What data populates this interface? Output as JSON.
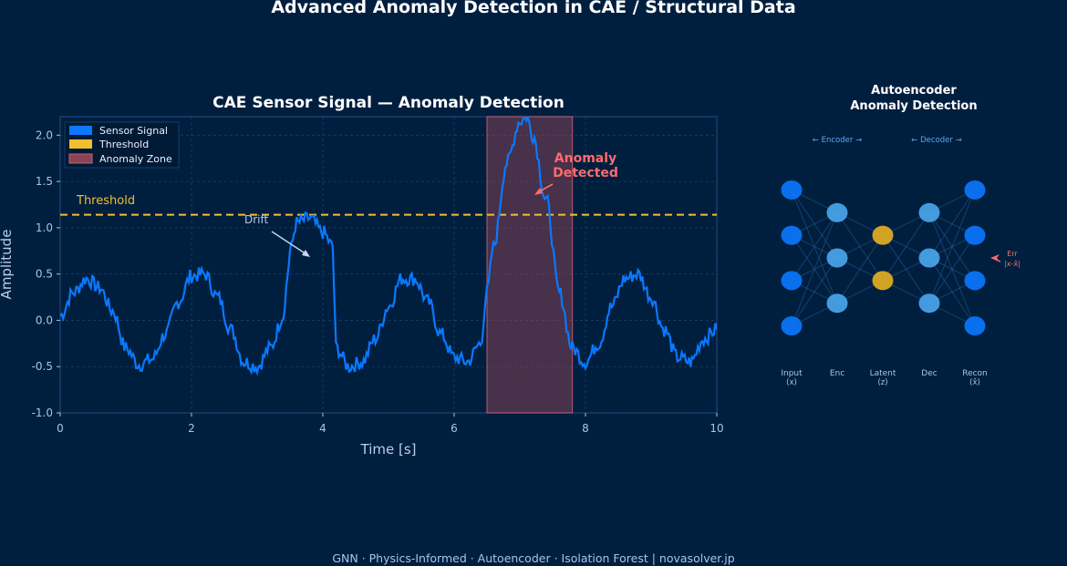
{
  "page": {
    "title": "Advanced Anomaly Detection in CAE / Structural Data",
    "footer": "GNN · Physics-Informed · Autoencoder · Isolation Forest  |  novasolver.jp"
  },
  "colors": {
    "background": "#001f3f",
    "signal": "#0a78ff",
    "threshold": "#f0c030",
    "anomaly_zone": "#a04858",
    "anomaly_text": "#ff6b6b",
    "node_outer": "#0a78ff",
    "node_hidden": "#4aa8f0",
    "node_latent": "#e8b020"
  },
  "chart_data": [
    {
      "type": "line",
      "title": "CAE Sensor Signal — Anomaly Detection",
      "xlabel": "Time  [s]",
      "ylabel": "Amplitude",
      "xlim": [
        0,
        10
      ],
      "ylim": [
        -1.0,
        2.2
      ],
      "xticks": [
        0,
        2,
        4,
        6,
        8,
        10
      ],
      "yticks": [
        -1.0,
        -0.5,
        0.0,
        0.5,
        1.0,
        1.5,
        2.0
      ],
      "grid": true,
      "legend_position": "top-left",
      "legend": [
        "Sensor Signal",
        "Threshold",
        "Anomaly Zone"
      ],
      "series": [
        {
          "name": "Sensor Signal",
          "x": [
            0,
            0.2,
            0.4,
            0.6,
            0.8,
            1.0,
            1.2,
            1.4,
            1.6,
            1.8,
            2.0,
            2.2,
            2.4,
            2.6,
            2.8,
            3.0,
            3.2,
            3.4,
            3.5,
            3.6,
            3.8,
            4.0,
            4.15,
            4.2,
            4.4,
            4.6,
            4.8,
            5.0,
            5.2,
            5.4,
            5.6,
            5.8,
            6.0,
            6.2,
            6.4,
            6.5,
            6.6,
            6.8,
            7.0,
            7.1,
            7.2,
            7.4,
            7.6,
            7.8,
            8.0,
            8.2,
            8.4,
            8.6,
            8.8,
            9.0,
            9.2,
            9.4,
            9.6,
            9.8,
            10.0
          ],
          "values": [
            0.05,
            0.3,
            0.45,
            0.35,
            0.1,
            -0.3,
            -0.48,
            -0.42,
            -0.15,
            0.2,
            0.48,
            0.5,
            0.25,
            -0.1,
            -0.45,
            -0.5,
            -0.3,
            0.05,
            0.75,
            1.05,
            1.1,
            0.95,
            0.8,
            -0.3,
            -0.5,
            -0.45,
            -0.2,
            0.15,
            0.45,
            0.45,
            0.2,
            -0.15,
            -0.4,
            -0.45,
            -0.25,
            0.3,
            0.8,
            1.7,
            2.15,
            2.2,
            2.0,
            1.3,
            0.3,
            -0.3,
            -0.45,
            -0.25,
            0.15,
            0.45,
            0.5,
            0.25,
            -0.1,
            -0.4,
            -0.45,
            -0.2,
            -0.1
          ]
        }
      ],
      "threshold": {
        "label": "Threshold",
        "value": 1.14
      },
      "anomaly_zone": {
        "x_start": 6.5,
        "x_end": 7.8
      },
      "annotations": [
        {
          "text": "Anomaly Detected",
          "x": 7.6,
          "y": 1.6
        },
        {
          "text": "Drift",
          "x": 2.8,
          "y": 1.05
        }
      ]
    },
    {
      "type": "diagram",
      "title": "Autoencoder Anomaly Detection",
      "encoder_label": "← Encoder →",
      "decoder_label": "← Decoder →",
      "layers": [
        {
          "name": "Input",
          "sub": "(x)",
          "nodes": 4
        },
        {
          "name": "Enc",
          "sub": "",
          "nodes": 3
        },
        {
          "name": "Latent",
          "sub": "(z)",
          "nodes": 2
        },
        {
          "name": "Dec",
          "sub": "",
          "nodes": 3
        },
        {
          "name": "Recon",
          "sub": "(x̂)",
          "nodes": 4
        }
      ],
      "error_label": "Err",
      "error_formula": "|x-x̂|"
    }
  ]
}
